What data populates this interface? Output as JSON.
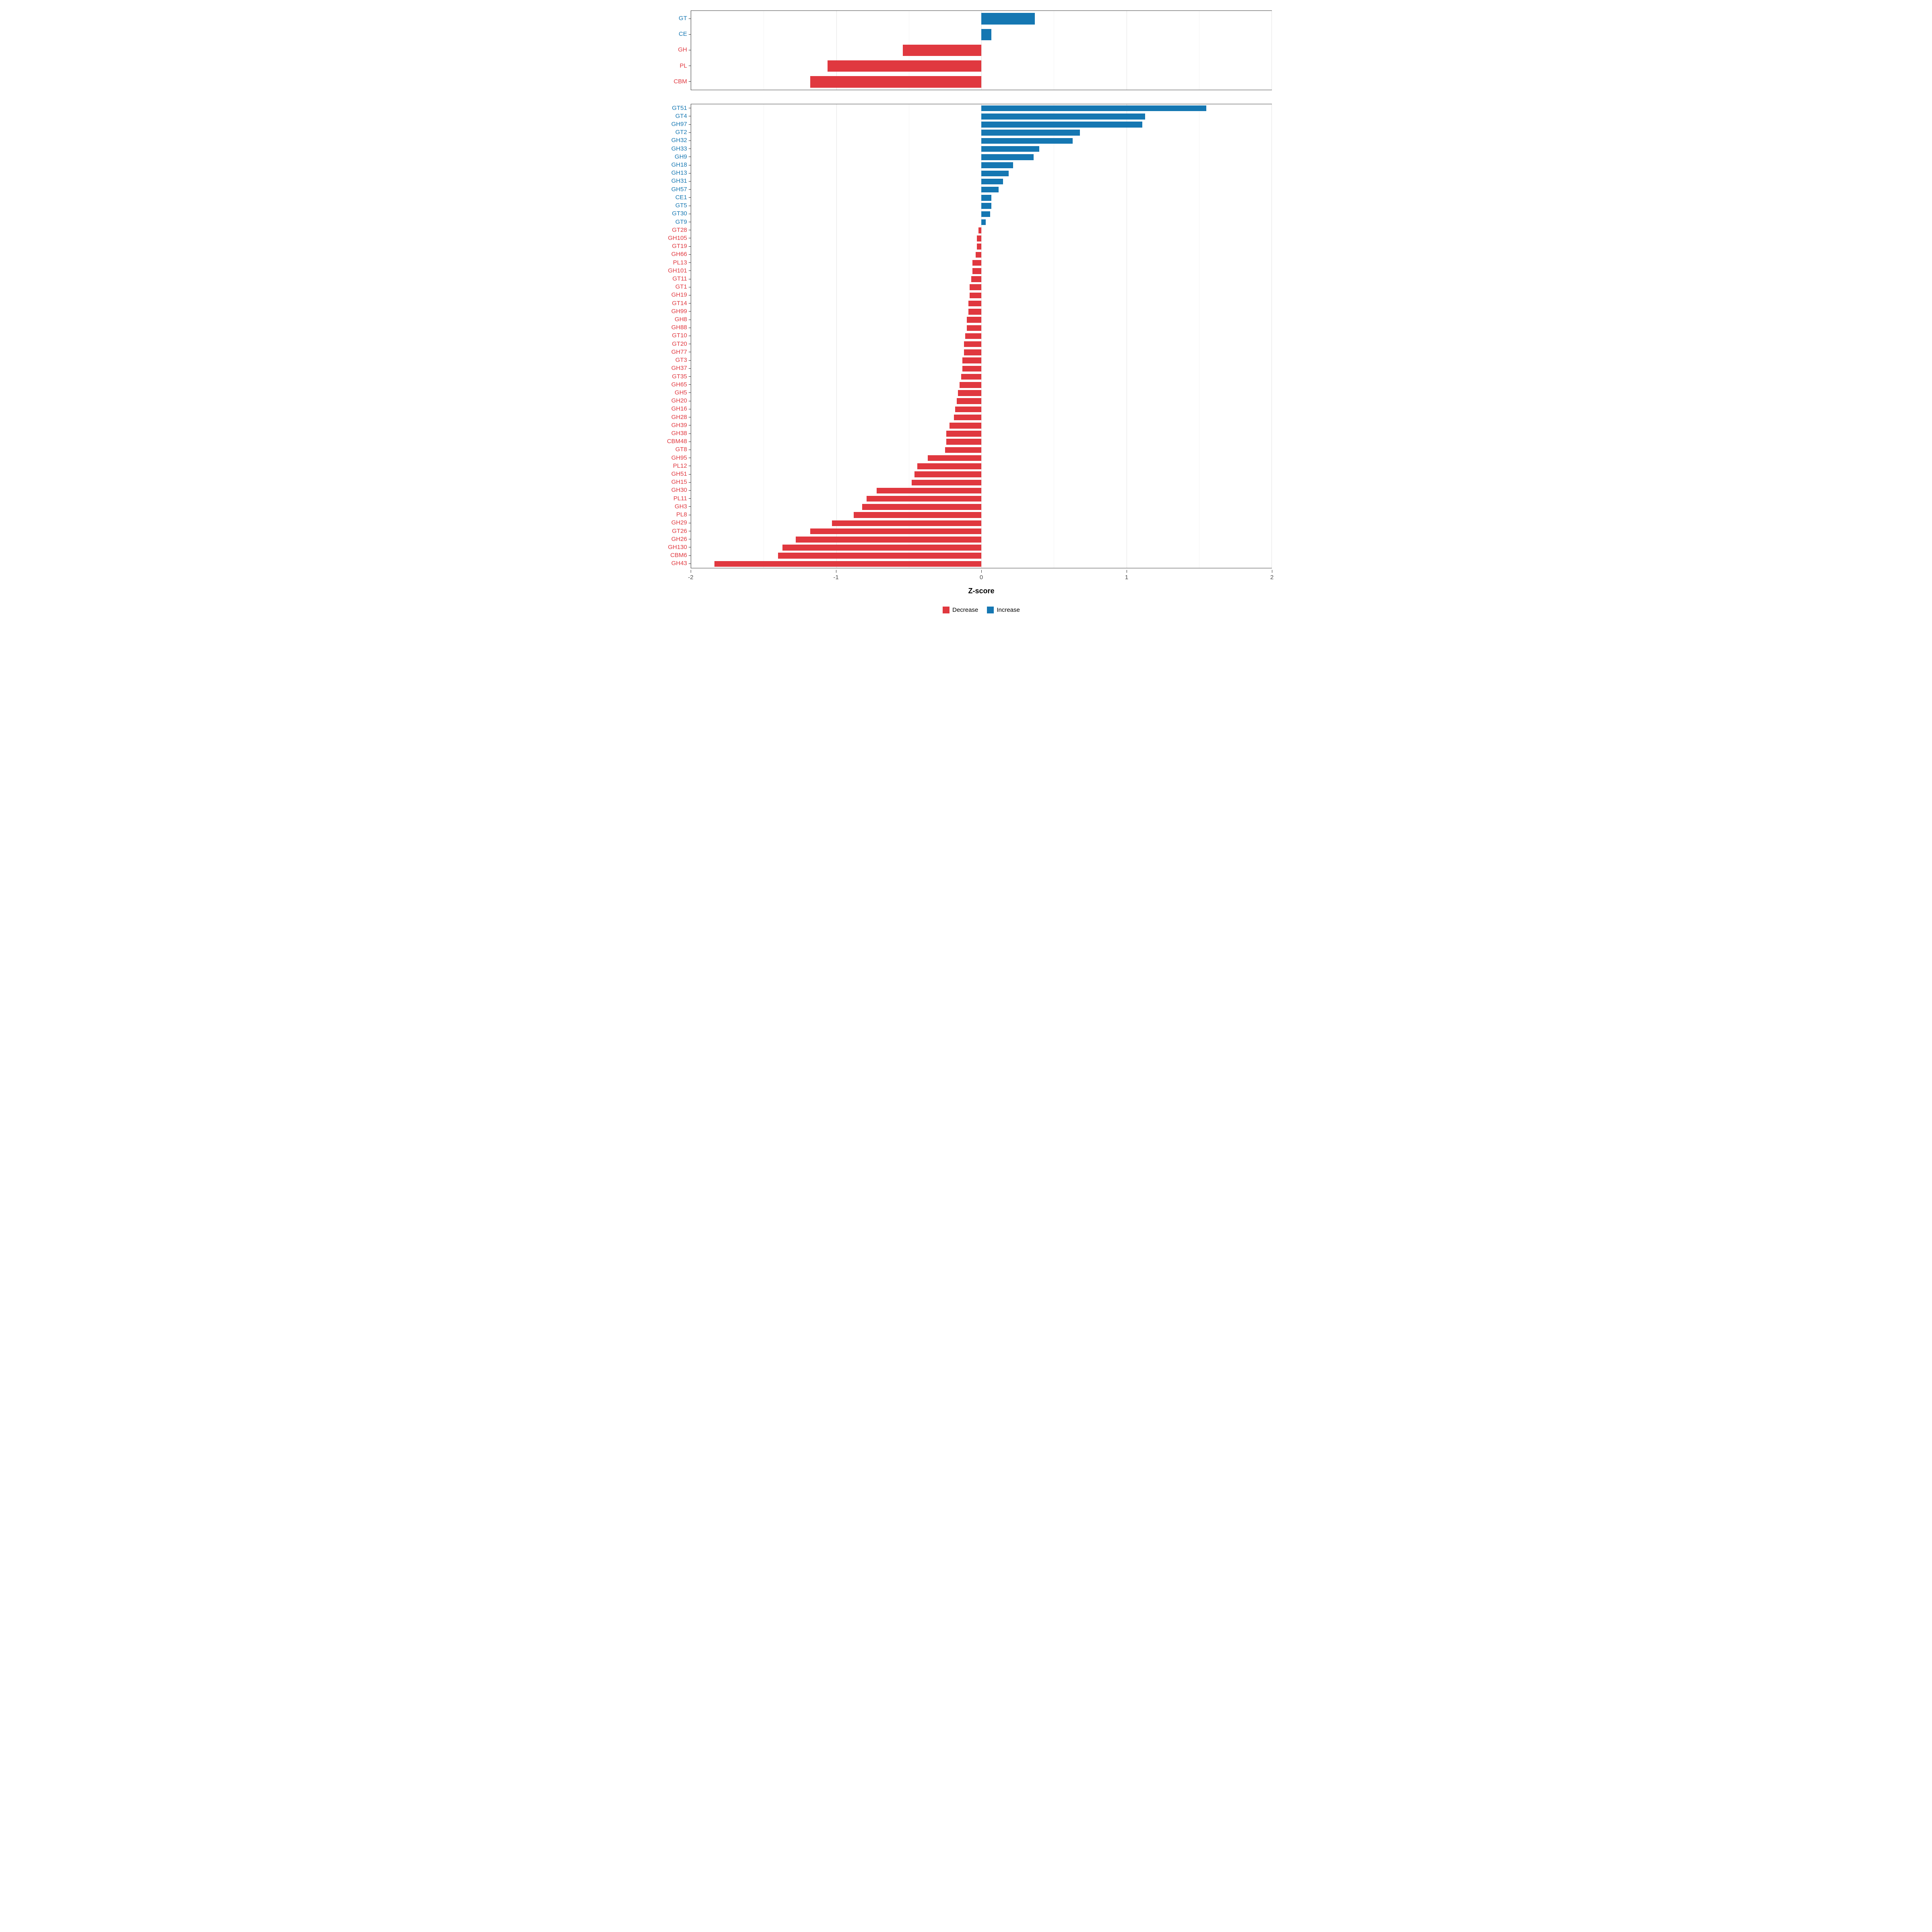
{
  "colors": {
    "decrease": "#E0383F",
    "increase": "#1577B2",
    "grid_major": "#E4E4E4",
    "grid_minor": "#F3F3F3",
    "panel_border": "#474747",
    "tick": "#333333",
    "tick_label_color": "#4D4D4D"
  },
  "axis": {
    "label": "Z-score",
    "xlim": [
      -2,
      2
    ],
    "major_ticks": [
      -2,
      -1,
      0,
      1,
      2
    ],
    "minor_ticks": [
      -1.5,
      -0.5,
      0.5,
      1.5
    ],
    "tick_labels": [
      "-2",
      "-1",
      "0",
      "1",
      "2"
    ]
  },
  "legend": {
    "items": [
      {
        "label": "Decrease",
        "key": "decrease"
      },
      {
        "label": "Increase",
        "key": "increase"
      }
    ]
  },
  "chart_data": [
    {
      "type": "bar",
      "orientation": "horizontal",
      "panel": "classes",
      "xlim": [
        -2,
        2
      ],
      "categories": [
        "GT",
        "CE",
        "GH",
        "PL",
        "CBM"
      ],
      "values": [
        0.37,
        0.07,
        -0.54,
        -1.06,
        -1.18
      ]
    },
    {
      "type": "bar",
      "orientation": "horizontal",
      "panel": "families",
      "xlim": [
        -2,
        2
      ],
      "categories": [
        "GT51",
        "GT4",
        "GH97",
        "GT2",
        "GH32",
        "GH33",
        "GH9",
        "GH18",
        "GH13",
        "GH31",
        "GH57",
        "CE1",
        "GT5",
        "GT30",
        "GT9",
        "GT28",
        "GH105",
        "GT19",
        "GH66",
        "PL13",
        "GH101",
        "GT11",
        "GT1",
        "GH19",
        "GT14",
        "GH99",
        "GH8",
        "GH88",
        "GT10",
        "GT20",
        "GH77",
        "GT3",
        "GH37",
        "GT35",
        "GH65",
        "GH5",
        "GH20",
        "GH16",
        "GH28",
        "GH39",
        "GH38",
        "CBM48",
        "GT8",
        "GH95",
        "PL12",
        "GH51",
        "GH15",
        "GH30",
        "PL11",
        "GH3",
        "PL8",
        "GH29",
        "GT26",
        "GH26",
        "GH130",
        "CBM6",
        "GH43"
      ],
      "values": [
        1.55,
        1.13,
        1.11,
        0.68,
        0.63,
        0.4,
        0.36,
        0.22,
        0.19,
        0.15,
        0.12,
        0.07,
        0.07,
        0.06,
        0.03,
        -0.02,
        -0.03,
        -0.03,
        -0.04,
        -0.06,
        -0.06,
        -0.07,
        -0.08,
        -0.08,
        -0.09,
        -0.09,
        -0.1,
        -0.1,
        -0.11,
        -0.12,
        -0.12,
        -0.13,
        -0.13,
        -0.14,
        -0.15,
        -0.16,
        -0.17,
        -0.18,
        -0.19,
        -0.22,
        -0.24,
        -0.24,
        -0.25,
        -0.37,
        -0.44,
        -0.46,
        -0.48,
        -0.72,
        -0.79,
        -0.82,
        -0.88,
        -1.03,
        -1.18,
        -1.28,
        -1.37,
        -1.4,
        -1.84
      ]
    }
  ]
}
